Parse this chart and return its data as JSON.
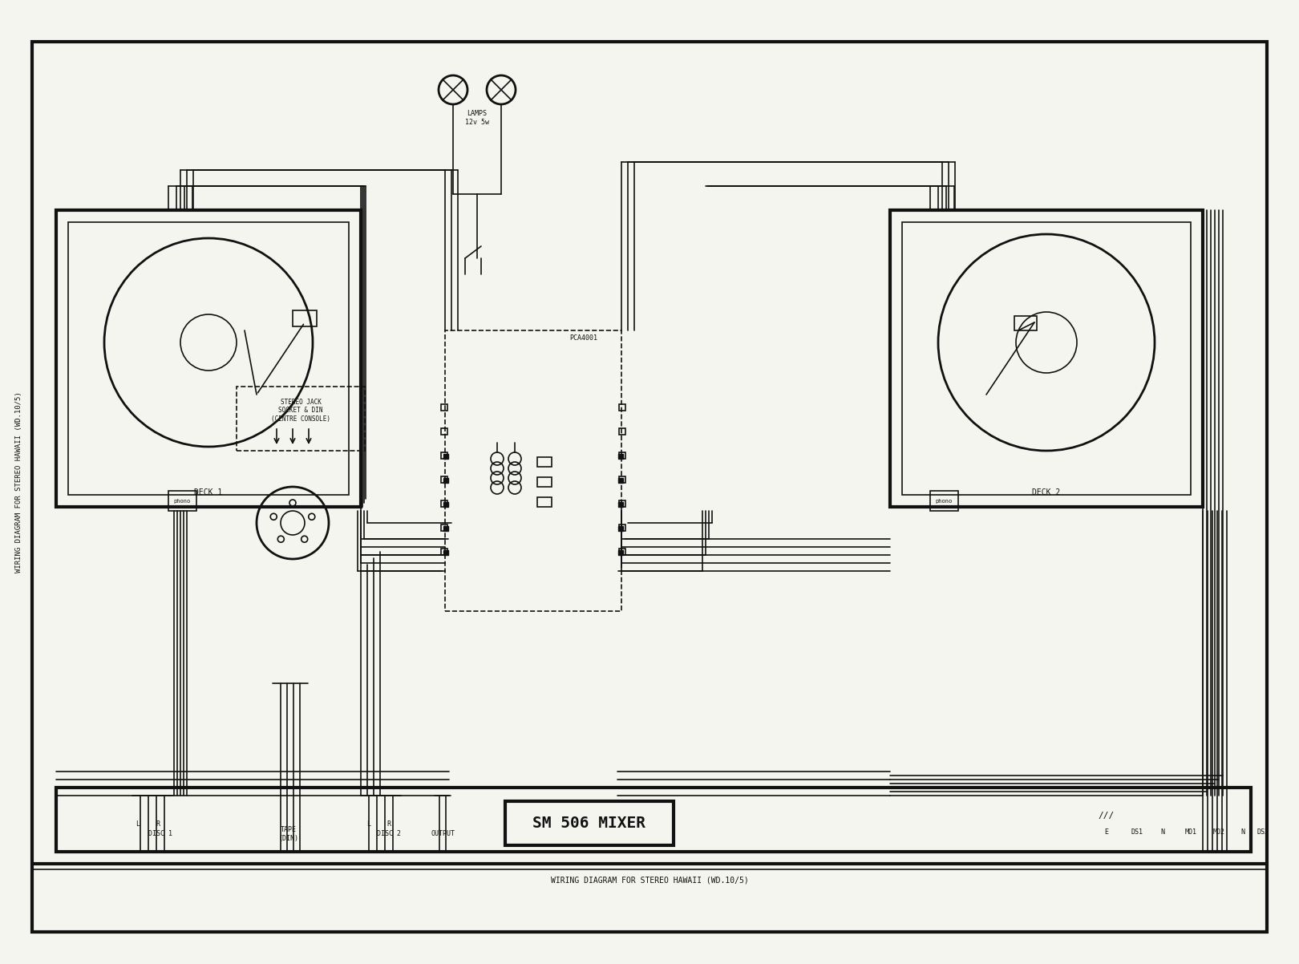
{
  "title": "SM 506 MIXER",
  "bottom_text": "WIRING DIAGRAM FOR STEREO HAWAII (WD.10/5)",
  "left_text": "WIRING DIAGRAM FOR STEREO HAWAII (WD.10/5)",
  "bg_color": "#f5f5f0",
  "line_color": "#111111",
  "deck1_label": "DECK 1",
  "deck2_label": "DECK 2",
  "disc1_label": "DISC 1",
  "disc2_label": "DISC 2",
  "tape_label": "TAPE\n(DIN)",
  "output_label": "OUTPUT",
  "lamp_label": "LAMPS\n12v 5w",
  "pca_label": "PCA4001",
  "stereo_jack_label": "STEREO JACK\nSOCKET & DIN\n(CENTRE CONSOLE)",
  "bottom_labels": [
    "E",
    "DS1",
    "N",
    "MO1",
    "MO2",
    "N",
    "DS2"
  ]
}
